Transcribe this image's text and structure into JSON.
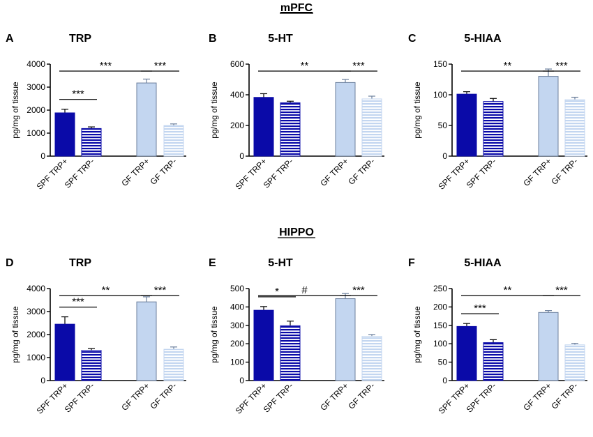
{
  "sections": [
    {
      "title": "mPFC"
    },
    {
      "title": "HIPPO"
    }
  ],
  "chart_data": [
    {
      "type": "bar",
      "panel": "A",
      "region": "mPFC",
      "title": "TRP",
      "ylabel": "pg/mg of tissue",
      "categories": [
        "SPF TRP+",
        "SPF TRP-",
        "GF TRP+",
        "GF TRP-"
      ],
      "values": [
        1880,
        1200,
        3180,
        1330
      ],
      "errors": [
        160,
        70,
        170,
        70
      ],
      "ylim": [
        0,
        4000
      ],
      "yticks": [
        "0",
        "1000",
        "2000",
        "3000",
        "4000"
      ],
      "significance": [
        {
          "from": 0,
          "to": 1,
          "label": "***"
        },
        {
          "from": 0,
          "to": 2,
          "label": "***"
        },
        {
          "from": 2,
          "to": 3,
          "label": "***"
        }
      ]
    },
    {
      "type": "bar",
      "panel": "B",
      "region": "mPFC",
      "title": "5-HT",
      "ylabel": "pg/mg of tissue",
      "categories": [
        "SPF TRP+",
        "SPF TRP-",
        "GF TRP+",
        "GF TRP-"
      ],
      "values": [
        383,
        348,
        480,
        373
      ],
      "errors": [
        24,
        10,
        20,
        18
      ],
      "ylim": [
        0,
        600
      ],
      "yticks": [
        "0",
        "200",
        "400",
        "600"
      ],
      "significance": [
        {
          "from": 0,
          "to": 2,
          "label": "**"
        },
        {
          "from": 2,
          "to": 3,
          "label": "***"
        }
      ]
    },
    {
      "type": "bar",
      "panel": "C",
      "region": "mPFC",
      "title": "5-HIAA",
      "ylabel": "pg/mg of tissue",
      "categories": [
        "SPF TRP+",
        "SPF TRP-",
        "GF TRP+",
        "GF TRP-"
      ],
      "values": [
        101,
        89,
        130,
        92
      ],
      "errors": [
        4,
        5,
        12,
        4
      ],
      "ylim": [
        0,
        150
      ],
      "yticks": [
        "0",
        "50",
        "100",
        "150"
      ],
      "significance": [
        {
          "from": 0,
          "to": 2,
          "label": "**"
        },
        {
          "from": 2,
          "to": 3,
          "label": "***"
        }
      ]
    },
    {
      "type": "bar",
      "panel": "D",
      "region": "HIPPO",
      "title": "TRP",
      "ylabel": "pg/mg of tissue",
      "categories": [
        "SPF TRP+",
        "SPF TRP-",
        "GF TRP+",
        "GF TRP-"
      ],
      "values": [
        2450,
        1310,
        3420,
        1360
      ],
      "errors": [
        320,
        80,
        220,
        100
      ],
      "ylim": [
        0,
        4000
      ],
      "yticks": [
        "0",
        "1000",
        "2000",
        "3000",
        "4000"
      ],
      "significance": [
        {
          "from": 0,
          "to": 1,
          "label": "***"
        },
        {
          "from": 0,
          "to": 2,
          "label": "**"
        },
        {
          "from": 2,
          "to": 3,
          "label": "***"
        }
      ]
    },
    {
      "type": "bar",
      "panel": "E",
      "region": "HIPPO",
      "title": "5-HT",
      "ylabel": "pg/mg of tissue",
      "categories": [
        "SPF TRP+",
        "SPF TRP-",
        "GF TRP+",
        "GF TRP-"
      ],
      "values": [
        382,
        298,
        445,
        240
      ],
      "errors": [
        20,
        25,
        28,
        10
      ],
      "ylim": [
        0,
        500
      ],
      "yticks": [
        "0",
        "100",
        "200",
        "300",
        "400",
        "500"
      ],
      "significance": [
        {
          "from": 0,
          "to": 1,
          "label": "*"
        },
        {
          "from": 0,
          "to": 2,
          "label": "#"
        },
        {
          "from": 2,
          "to": 3,
          "label": "***"
        }
      ]
    },
    {
      "type": "bar",
      "panel": "F",
      "region": "HIPPO",
      "title": "5-HIAA",
      "ylabel": "pg/mg of tissue",
      "categories": [
        "SPF TRP+",
        "SPF TRP-",
        "GF TRP+",
        "GF TRP-"
      ],
      "values": [
        147,
        103,
        185,
        97
      ],
      "errors": [
        8,
        8,
        5,
        4
      ],
      "ylim": [
        0,
        250
      ],
      "yticks": [
        "0",
        "50",
        "100",
        "150",
        "200",
        "250"
      ],
      "significance": [
        {
          "from": 0,
          "to": 1,
          "label": "***"
        },
        {
          "from": 0,
          "to": 2,
          "label": "**"
        },
        {
          "from": 2,
          "to": 3,
          "label": "***"
        }
      ]
    }
  ],
  "colors": {
    "spf": "#0a0aa8",
    "gf": "#c3d6f0",
    "gf_stroke": "#6b7f9c",
    "gf_stripe": "#c3d6f0",
    "axis": "#000000"
  }
}
